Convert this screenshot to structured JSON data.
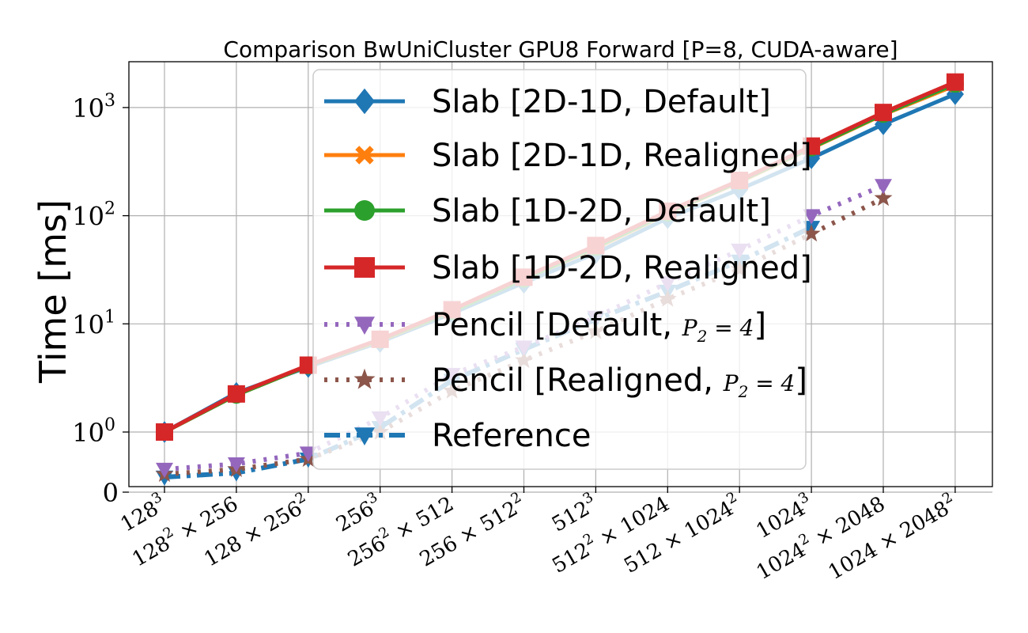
{
  "chart_data": {
    "type": "line",
    "title": "Comparison BwUniCluster GPU8 Forward [P=8, CUDA-aware]",
    "ylabel": "Time [ms]",
    "xlabel": "",
    "yscale": "symlog",
    "ylim": [
      0,
      2500
    ],
    "grid": true,
    "legend_position": "top-center",
    "categories": [
      {
        "base": "128",
        "sup": "3",
        "rest": "",
        "rest_sup": ""
      },
      {
        "base": "128",
        "sup": "2",
        "rest": " × 256",
        "rest_sup": ""
      },
      {
        "base": "128 × 256",
        "sup": "2",
        "rest": "",
        "rest_sup": ""
      },
      {
        "base": "256",
        "sup": "3",
        "rest": "",
        "rest_sup": ""
      },
      {
        "base": "256",
        "sup": "2",
        "rest": " × 512",
        "rest_sup": ""
      },
      {
        "base": "256 × 512",
        "sup": "2",
        "rest": "",
        "rest_sup": ""
      },
      {
        "base": "512",
        "sup": "3",
        "rest": "",
        "rest_sup": ""
      },
      {
        "base": "512",
        "sup": "2",
        "rest": " × 1024",
        "rest_sup": ""
      },
      {
        "base": "512 × 1024",
        "sup": "2",
        "rest": "",
        "rest_sup": ""
      },
      {
        "base": "1024",
        "sup": "3",
        "rest": "",
        "rest_sup": ""
      },
      {
        "base": "1024",
        "sup": "2",
        "rest": " × 2048",
        "rest_sup": ""
      },
      {
        "base": "1024 × 2048",
        "sup": "2",
        "rest": "",
        "rest_sup": ""
      }
    ],
    "yticks": [
      {
        "value": 0,
        "base": "0",
        "sup": ""
      },
      {
        "value": 1,
        "base": "10",
        "sup": "0"
      },
      {
        "value": 10,
        "base": "10",
        "sup": "1"
      },
      {
        "value": 100,
        "base": "10",
        "sup": "2"
      },
      {
        "value": 1000,
        "base": "10",
        "sup": "3"
      }
    ],
    "series": [
      {
        "name": "Slab [2D-1D, Default]",
        "color": "#1f77b4",
        "dash": "solid",
        "marker": "diamond",
        "values": [
          1.0,
          2.3,
          4.0,
          6.8,
          12.5,
          24,
          45,
          95,
          175,
          340,
          700,
          1330
        ]
      },
      {
        "name": "Slab [2D-1D, Realigned]",
        "color": "#ff7f0e",
        "dash": "solid",
        "marker": "x",
        "values": [
          1.0,
          2.2,
          4.1,
          7.0,
          13,
          26,
          50,
          105,
          205,
          420,
          860,
          1600
        ]
      },
      {
        "name": "Slab [1D-2D, Default]",
        "color": "#2ca02c",
        "dash": "solid",
        "marker": "circle",
        "values": [
          1.0,
          2.2,
          4.1,
          7.1,
          13,
          26,
          51,
          106,
          208,
          425,
          870,
          1650
        ]
      },
      {
        "name": "Slab [1D-2D, Realigned]",
        "color": "#d62728",
        "dash": "solid",
        "marker": "square",
        "values": [
          1.0,
          2.25,
          4.15,
          7.2,
          13.5,
          27,
          53,
          110,
          212,
          440,
          900,
          1720
        ]
      },
      {
        "name": "Pencil [Default, ",
        "name_math": "P",
        "name_math_sub": "2",
        "name_math_rest": " = 4",
        "name_end": "]",
        "color": "#9467bd",
        "dash": "dotted",
        "marker": "triangle-down",
        "values": [
          0.38,
          0.47,
          0.65,
          1.35,
          3.4,
          6.1,
          11.5,
          24,
          48,
          100,
          190,
          null
        ]
      },
      {
        "name": "Pencil [Realigned, ",
        "name_math": "P",
        "name_math_sub": "2",
        "name_math_rest": " = 4",
        "name_end": "]",
        "color": "#8c564b",
        "dash": "dotted",
        "marker": "star",
        "values": [
          0.3,
          0.38,
          0.55,
          1.0,
          2.4,
          4.6,
          8.5,
          17,
          32,
          68,
          145,
          null
        ]
      },
      {
        "name": "Reference",
        "color": "#1f77b4",
        "dash": "dashdot",
        "marker": "triangle-down",
        "values": [
          0.25,
          0.32,
          0.55,
          1.1,
          3.0,
          5.8,
          11,
          20,
          38,
          78,
          null,
          null
        ]
      }
    ]
  }
}
